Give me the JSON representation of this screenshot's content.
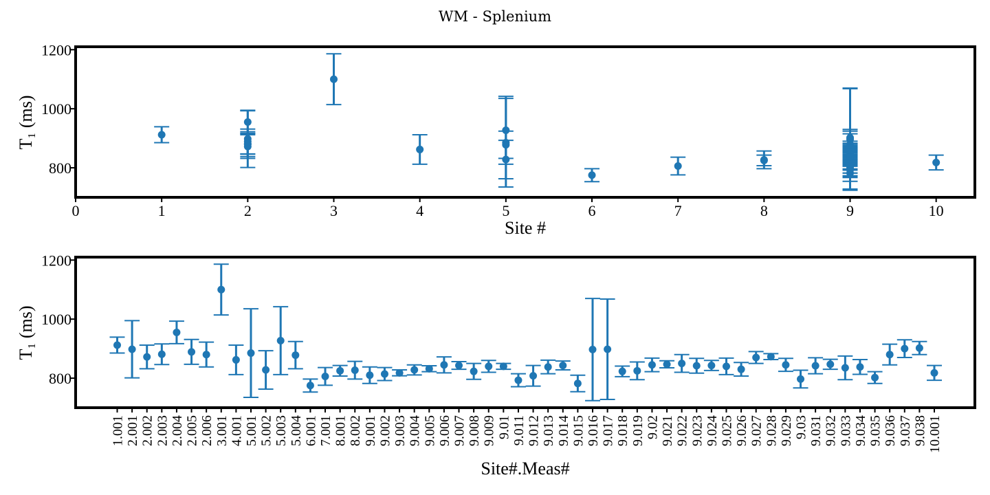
{
  "chart_data": [
    {
      "type": "scatter",
      "title": "WM - Splenium",
      "xlabel": "Site #",
      "ylabel": "T₁ (ms)",
      "xlim": [
        0,
        10.45
      ],
      "ylim": [
        700,
        1210
      ],
      "xticks": [
        "0",
        "1",
        "2",
        "3",
        "4",
        "5",
        "6",
        "7",
        "8",
        "9",
        "10"
      ],
      "yticks": [
        "800",
        "1000",
        "1200"
      ],
      "grid": false,
      "color": "#1f77b4",
      "points": [
        {
          "x": 1,
          "y": 912,
          "err": 27
        },
        {
          "x": 2,
          "y": 898,
          "err": 97
        },
        {
          "x": 2,
          "y": 872,
          "err": 40
        },
        {
          "x": 2,
          "y": 881,
          "err": 35
        },
        {
          "x": 2,
          "y": 955,
          "err": 38
        },
        {
          "x": 2,
          "y": 889,
          "err": 42
        },
        {
          "x": 2,
          "y": 880,
          "err": 42
        },
        {
          "x": 3,
          "y": 1100,
          "err": 86
        },
        {
          "x": 4,
          "y": 862,
          "err": 50
        },
        {
          "x": 5,
          "y": 885,
          "err": 150
        },
        {
          "x": 5,
          "y": 828,
          "err": 65
        },
        {
          "x": 5,
          "y": 927,
          "err": 115
        },
        {
          "x": 5,
          "y": 878,
          "err": 46
        },
        {
          "x": 6,
          "y": 775,
          "err": 22
        },
        {
          "x": 7,
          "y": 806,
          "err": 30
        },
        {
          "x": 8,
          "y": 825,
          "err": 18
        },
        {
          "x": 8,
          "y": 827,
          "err": 30
        },
        {
          "x": 9,
          "y": 810,
          "err": 28
        },
        {
          "x": 9,
          "y": 814,
          "err": 22
        },
        {
          "x": 9,
          "y": 818,
          "err": 10
        },
        {
          "x": 9,
          "y": 828,
          "err": 17
        },
        {
          "x": 9,
          "y": 832,
          "err": 10
        },
        {
          "x": 9,
          "y": 845,
          "err": 27
        },
        {
          "x": 9,
          "y": 843,
          "err": 13
        },
        {
          "x": 9,
          "y": 823,
          "err": 27
        },
        {
          "x": 9,
          "y": 840,
          "err": 20
        },
        {
          "x": 9,
          "y": 840,
          "err": 10
        },
        {
          "x": 9,
          "y": 793,
          "err": 22
        },
        {
          "x": 9,
          "y": 808,
          "err": 35
        },
        {
          "x": 9,
          "y": 838,
          "err": 23
        },
        {
          "x": 9,
          "y": 843,
          "err": 15
        },
        {
          "x": 9,
          "y": 782,
          "err": 28
        },
        {
          "x": 9,
          "y": 897,
          "err": 173
        },
        {
          "x": 9,
          "y": 898,
          "err": 170
        },
        {
          "x": 9,
          "y": 823,
          "err": 18
        },
        {
          "x": 9,
          "y": 825,
          "err": 30
        },
        {
          "x": 9,
          "y": 845,
          "err": 23
        },
        {
          "x": 9,
          "y": 847,
          "err": 12
        },
        {
          "x": 9,
          "y": 850,
          "err": 30
        },
        {
          "x": 9,
          "y": 842,
          "err": 25
        },
        {
          "x": 9,
          "y": 843,
          "err": 17
        },
        {
          "x": 9,
          "y": 840,
          "err": 28
        },
        {
          "x": 9,
          "y": 830,
          "err": 23
        },
        {
          "x": 9,
          "y": 870,
          "err": 20
        },
        {
          "x": 9,
          "y": 873,
          "err": 10
        },
        {
          "x": 9,
          "y": 845,
          "err": 22
        },
        {
          "x": 9,
          "y": 797,
          "err": 30
        },
        {
          "x": 9,
          "y": 842,
          "err": 27
        },
        {
          "x": 9,
          "y": 847,
          "err": 17
        },
        {
          "x": 9,
          "y": 835,
          "err": 40
        },
        {
          "x": 9,
          "y": 838,
          "err": 25
        },
        {
          "x": 9,
          "y": 802,
          "err": 20
        },
        {
          "x": 9,
          "y": 880,
          "err": 35
        },
        {
          "x": 9,
          "y": 900,
          "err": 30
        },
        {
          "x": 9,
          "y": 902,
          "err": 22
        },
        {
          "x": 10,
          "y": 818,
          "err": 25
        }
      ]
    },
    {
      "type": "scatter",
      "xlabel": "Site#.Meas#",
      "ylabel": "T₁ (ms)",
      "ylim": [
        700,
        1210
      ],
      "yticks": [
        "800",
        "1000",
        "1200"
      ],
      "grid": false,
      "color": "#1f77b4",
      "categories": [
        "1.001",
        "2.001",
        "2.002",
        "2.003",
        "2.004",
        "2.005",
        "2.006",
        "3.001",
        "4.001",
        "5.001",
        "5.002",
        "5.003",
        "5.004",
        "6.001",
        "7.001",
        "8.001",
        "8.002",
        "9.001",
        "9.002",
        "9.003",
        "9.004",
        "9.005",
        "9.006",
        "9.007",
        "9.008",
        "9.009",
        "9.01",
        "9.011",
        "9.012",
        "9.013",
        "9.014",
        "9.015",
        "9.016",
        "9.017",
        "9.018",
        "9.019",
        "9.02",
        "9.021",
        "9.022",
        "9.023",
        "9.024",
        "9.025",
        "9.026",
        "9.027",
        "9.028",
        "9.029",
        "9.03",
        "9.031",
        "9.032",
        "9.033",
        "9.034",
        "9.035",
        "9.036",
        "9.037",
        "9.038",
        "10.001"
      ],
      "values": [
        912,
        898,
        872,
        881,
        955,
        889,
        880,
        1100,
        862,
        885,
        828,
        927,
        878,
        775,
        806,
        825,
        827,
        810,
        814,
        818,
        828,
        832,
        845,
        843,
        823,
        840,
        840,
        793,
        808,
        838,
        843,
        782,
        897,
        898,
        823,
        825,
        845,
        847,
        850,
        842,
        843,
        840,
        830,
        870,
        873,
        845,
        797,
        842,
        847,
        835,
        838,
        802,
        880,
        900,
        902,
        818
      ],
      "errors": [
        27,
        97,
        40,
        35,
        38,
        42,
        42,
        86,
        50,
        150,
        65,
        115,
        46,
        22,
        30,
        18,
        30,
        28,
        22,
        10,
        17,
        10,
        27,
        13,
        27,
        20,
        10,
        22,
        35,
        23,
        15,
        28,
        173,
        170,
        18,
        30,
        23,
        12,
        30,
        25,
        17,
        28,
        23,
        20,
        10,
        22,
        30,
        27,
        17,
        40,
        25,
        20,
        35,
        30,
        22,
        25
      ]
    }
  ]
}
